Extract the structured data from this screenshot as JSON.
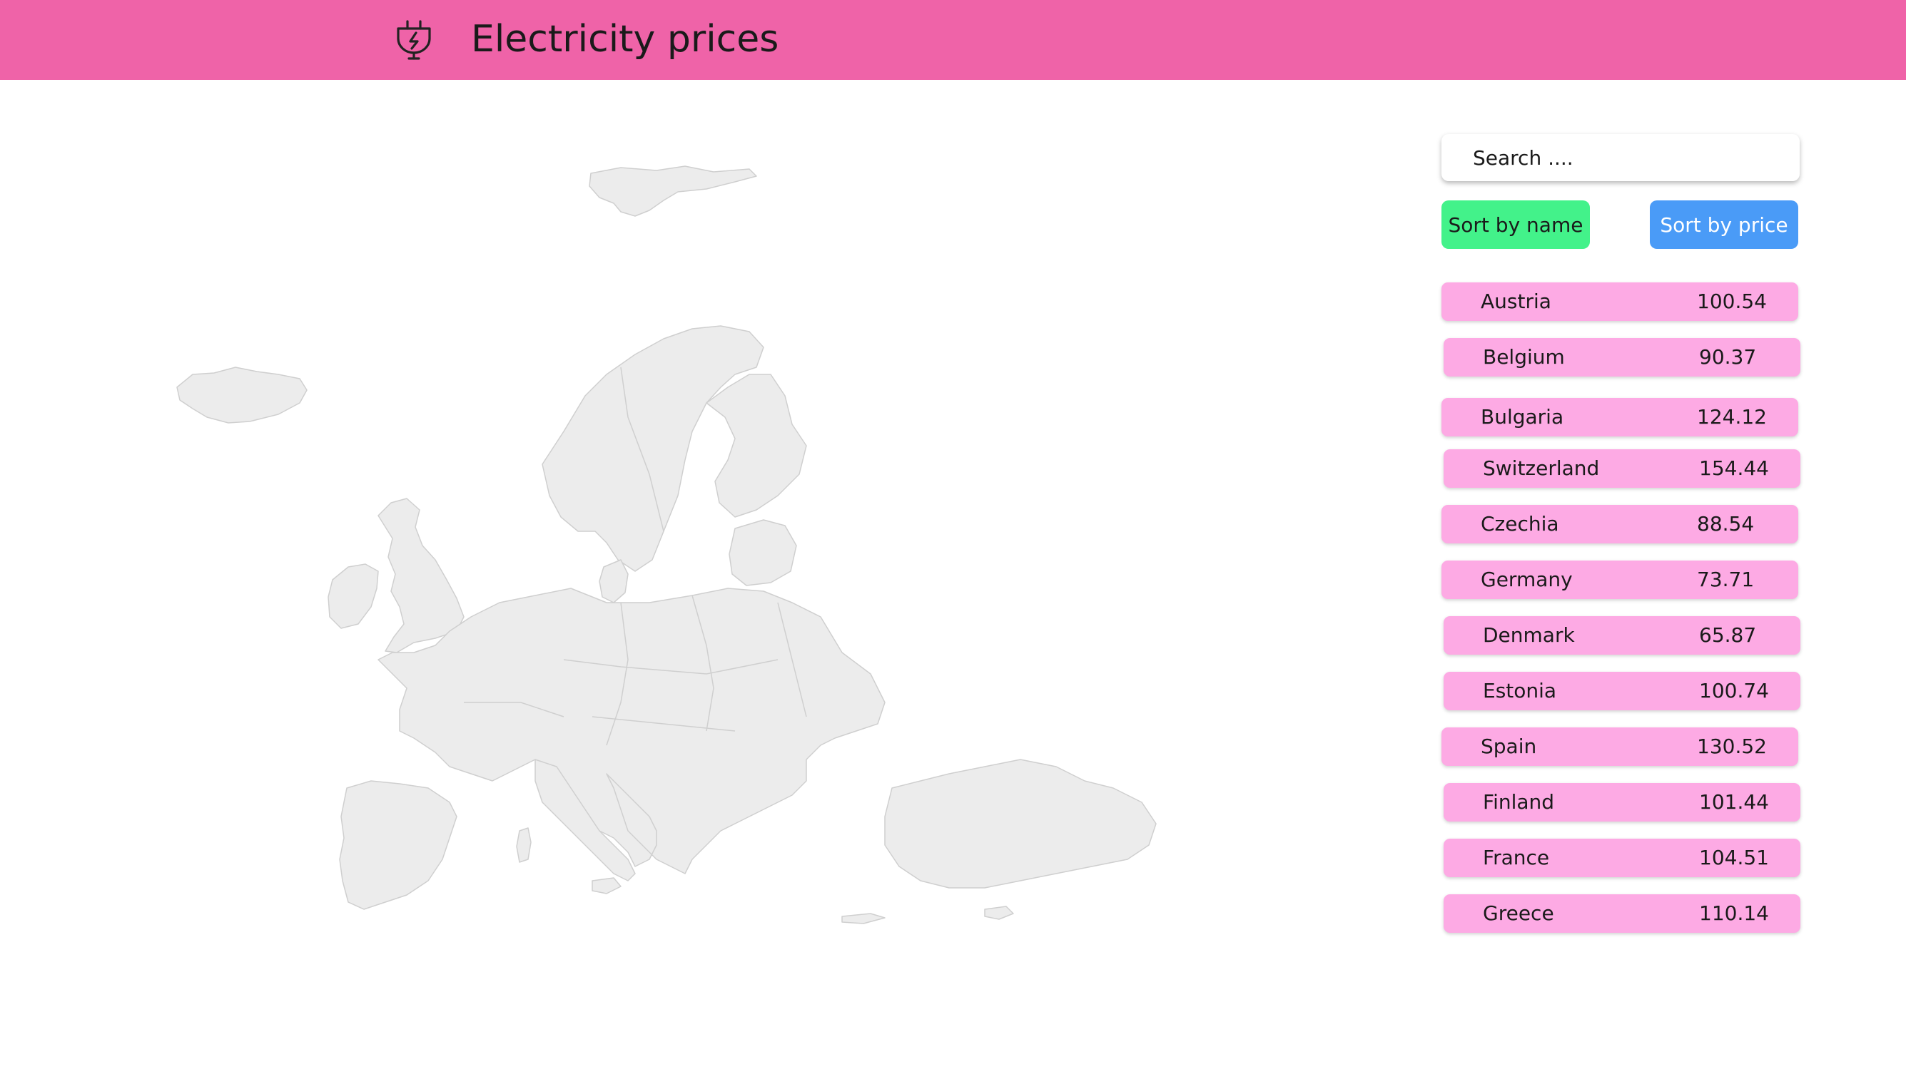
{
  "header": {
    "title": "Electricity prices",
    "background": "#ef63a8",
    "logo_icon": "plug-bolt-icon"
  },
  "search": {
    "placeholder": "Search ...."
  },
  "sort_buttons": {
    "by_name_label": "Sort by name",
    "by_price_label": "Sort by price",
    "by_name_color": "#43f28a",
    "by_price_color": "#4a9bf7"
  },
  "countries": [
    {
      "name": "Austria",
      "price": "100.54"
    },
    {
      "name": "Belgium",
      "price": "90.37"
    },
    {
      "name": "Bulgaria",
      "price": "124.12"
    },
    {
      "name": "Switzerland",
      "price": "154.44"
    },
    {
      "name": "Czechia",
      "price": "88.54"
    },
    {
      "name": "Germany",
      "price": "73.71"
    },
    {
      "name": "Denmark",
      "price": "65.87"
    },
    {
      "name": "Estonia",
      "price": "100.74"
    },
    {
      "name": "Spain",
      "price": "130.52"
    },
    {
      "name": "Finland",
      "price": "101.44"
    },
    {
      "name": "France",
      "price": "104.51"
    },
    {
      "name": "Greece",
      "price": "110.14"
    }
  ],
  "row_color": "#fdaae4",
  "map_fill_color": "#ececec"
}
